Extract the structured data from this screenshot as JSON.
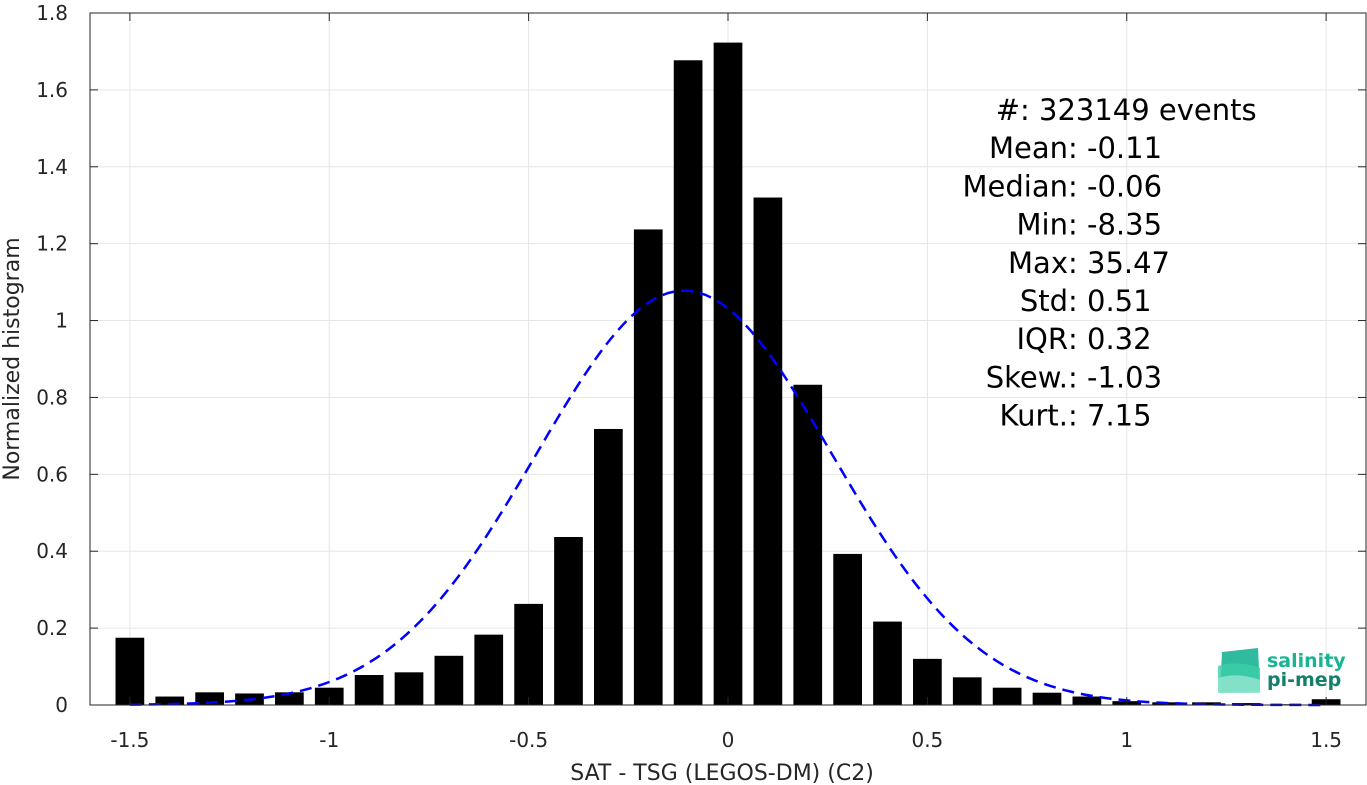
{
  "chart_data": {
    "type": "bar",
    "title": "",
    "xlabel": "SAT - TSG (LEGOS-DM) (C2)",
    "ylabel": "Normalized histogram",
    "xlim": [
      -1.6,
      1.6
    ],
    "ylim": [
      0,
      1.8
    ],
    "xticks": [
      -1.5,
      -1,
      -0.5,
      0,
      0.5,
      1,
      1.5
    ],
    "xtick_labels": [
      "-1.5",
      "-1",
      "-0.5",
      "0",
      "0.5",
      "1",
      "1.5"
    ],
    "yticks": [
      0,
      0.2,
      0.4,
      0.6,
      0.8,
      1,
      1.2,
      1.4,
      1.6,
      1.8
    ],
    "ytick_labels": [
      "0",
      "0.2",
      "0.4",
      "0.6",
      "0.8",
      "1",
      "1.2",
      "1.4",
      "1.6",
      "1.8"
    ],
    "grid": true,
    "bar_color": "#000000",
    "bins": [
      -1.5,
      -1.4,
      -1.3,
      -1.2,
      -1.1,
      -1.0,
      -0.9,
      -0.8,
      -0.7,
      -0.6,
      -0.5,
      -0.4,
      -0.3,
      -0.2,
      -0.1,
      0.0,
      0.1,
      0.2,
      0.3,
      0.4,
      0.5,
      0.6,
      0.7,
      0.8,
      0.9,
      1.0,
      1.1,
      1.2,
      1.3,
      1.4,
      1.5
    ],
    "values": [
      0.175,
      0.022,
      0.033,
      0.03,
      0.033,
      0.045,
      0.078,
      0.085,
      0.128,
      0.183,
      0.263,
      0.437,
      0.718,
      1.237,
      1.677,
      1.723,
      1.32,
      0.833,
      0.393,
      0.217,
      0.12,
      0.072,
      0.045,
      0.032,
      0.022,
      0.01,
      0.007,
      0.007,
      0.005,
      0.002,
      0.015
    ],
    "fit": {
      "type": "gaussian",
      "mean": -0.11,
      "std": 0.37,
      "peak": 1.078,
      "color": "#0000ff",
      "style": "dashed"
    },
    "stats": [
      {
        "label": "#  ",
        "value": ": 323149 events"
      },
      {
        "label": "Mean ",
        "value": ": -0.11"
      },
      {
        "label": "Median ",
        "value": ": -0.06"
      },
      {
        "label": "Min ",
        "value": ": -8.35"
      },
      {
        "label": "Max ",
        "value": ": 35.47"
      },
      {
        "label": "Std ",
        "value": ": 0.51"
      },
      {
        "label": "IQR ",
        "value": ": 0.32"
      },
      {
        "label": "Skew. ",
        "value": ": -1.03"
      },
      {
        "label": "Kurt. ",
        "value": ": 7.15"
      }
    ]
  },
  "logo": {
    "line1": "salinity",
    "line2": "pi-mep",
    "color1": "#1ab394",
    "color2": "#14806c"
  }
}
